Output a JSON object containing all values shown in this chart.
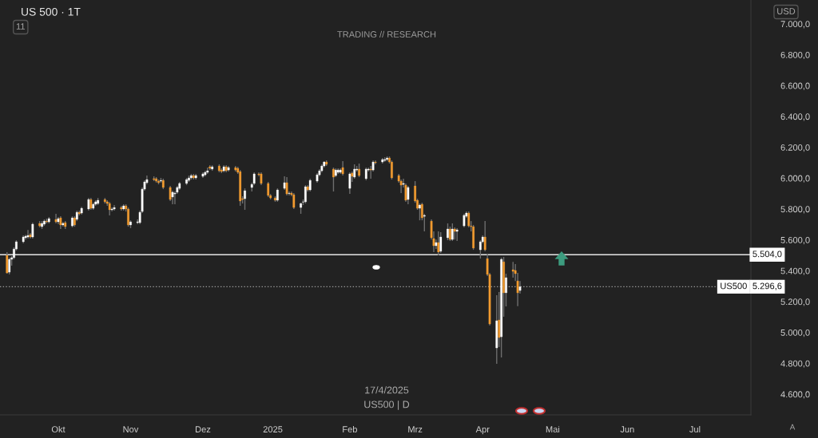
{
  "chart_data": {
    "type": "candlestick",
    "title": "US 500 · 1T",
    "subtitle": "TRADING // RESEARCH",
    "annotations": [
      "11",
      "USD",
      "17/4/2025",
      "US500 | D",
      "A",
      {
        "text": "US500",
        "y": 5296.6
      }
    ],
    "x": [
      "2024-09-09",
      "2024-09-10",
      "2024-09-11",
      "2024-09-12",
      "2024-09-13",
      "2024-09-16",
      "2024-09-17",
      "2024-09-18",
      "2024-09-19",
      "2024-09-20",
      "2024-09-23",
      "2024-09-24",
      "2024-09-25",
      "2024-09-26",
      "2024-09-27",
      "2024-09-30",
      "2024-10-01",
      "2024-10-02",
      "2024-10-03",
      "2024-10-04",
      "2024-10-07",
      "2024-10-08",
      "2024-10-09",
      "2024-10-10",
      "2024-10-11",
      "2024-10-14",
      "2024-10-15",
      "2024-10-16",
      "2024-10-17",
      "2024-10-18",
      "2024-10-21",
      "2024-10-22",
      "2024-10-23",
      "2024-10-24",
      "2024-10-25",
      "2024-10-28",
      "2024-10-29",
      "2024-10-30",
      "2024-10-31",
      "2024-11-01",
      "2024-11-04",
      "2024-11-05",
      "2024-11-06",
      "2024-11-07",
      "2024-11-08",
      "2024-11-11",
      "2024-11-12",
      "2024-11-13",
      "2024-11-14",
      "2024-11-15",
      "2024-11-18",
      "2024-11-19",
      "2024-11-20",
      "2024-11-21",
      "2024-11-22",
      "2024-11-25",
      "2024-11-26",
      "2024-11-27",
      "2024-11-28",
      "2024-11-29",
      "2024-12-02",
      "2024-12-03",
      "2024-12-04",
      "2024-12-05",
      "2024-12-06",
      "2024-12-09",
      "2024-12-10",
      "2024-12-11",
      "2024-12-12",
      "2024-12-13",
      "2024-12-16",
      "2024-12-17",
      "2024-12-18",
      "2024-12-19",
      "2024-12-20",
      "2024-12-23",
      "2024-12-24",
      "2024-12-26",
      "2024-12-27",
      "2024-12-30",
      "2024-12-31",
      "2025-01-02",
      "2025-01-03",
      "2025-01-06",
      "2025-01-07",
      "2025-01-08",
      "2025-01-09",
      "2025-01-10",
      "2025-01-13",
      "2025-01-14",
      "2025-01-15",
      "2025-01-16",
      "2025-01-17",
      "2025-01-20",
      "2025-01-21",
      "2025-01-22",
      "2025-01-23",
      "2025-01-24",
      "2025-01-27",
      "2025-01-28",
      "2025-01-29",
      "2025-01-30",
      "2025-01-31",
      "2025-02-03",
      "2025-02-04",
      "2025-02-05",
      "2025-02-06",
      "2025-02-07",
      "2025-02-10",
      "2025-02-11",
      "2025-02-12",
      "2025-02-13",
      "2025-02-14",
      "2025-02-17",
      "2025-02-18",
      "2025-02-19",
      "2025-02-20",
      "2025-02-21",
      "2025-02-24",
      "2025-02-25",
      "2025-02-26",
      "2025-02-27",
      "2025-02-28",
      "2025-03-03",
      "2025-03-04",
      "2025-03-05",
      "2025-03-06",
      "2025-03-07",
      "2025-03-10",
      "2025-03-11",
      "2025-03-12",
      "2025-03-13",
      "2025-03-14",
      "2025-03-17",
      "2025-03-18",
      "2025-03-19",
      "2025-03-20",
      "2025-03-21",
      "2025-03-24",
      "2025-03-25",
      "2025-03-26",
      "2025-03-27",
      "2025-03-28",
      "2025-03-31",
      "2025-04-01",
      "2025-04-02",
      "2025-04-03",
      "2025-04-04",
      "2025-04-07",
      "2025-04-08",
      "2025-04-09",
      "2025-04-10",
      "2025-04-11",
      "2025-04-14",
      "2025-04-15",
      "2025-04-16",
      "2025-04-17"
    ],
    "ohlc": [
      [
        5500,
        5521,
        5381,
        5386
      ],
      [
        5391,
        5485,
        5376,
        5474
      ],
      [
        5474,
        5495,
        5433,
        5485
      ],
      [
        5485,
        5552,
        5474,
        5541
      ],
      [
        5541,
        5598,
        5531,
        5588
      ],
      [
        5588,
        5629,
        5578,
        5619
      ],
      [
        5614,
        5634,
        5603,
        5624
      ],
      [
        5619,
        5665,
        5609,
        5629
      ],
      [
        5634,
        5645,
        5609,
        5619
      ],
      [
        5619,
        5712,
        5609,
        5702
      ],
      [
        5707,
        5722,
        5681,
        5691
      ],
      [
        5686,
        5722,
        5671,
        5707
      ],
      [
        5702,
        5733,
        5691,
        5722
      ],
      [
        5722,
        5738,
        5707,
        5717
      ],
      [
        5717,
        5748,
        5707,
        5738
      ],
      [
        5733,
        5769,
        5707,
        5717
      ],
      [
        5717,
        5748,
        5702,
        5738
      ],
      [
        5743,
        5753,
        5671,
        5697
      ],
      [
        5697,
        5717,
        5686,
        5707
      ],
      [
        5712,
        5722,
        5671,
        5686
      ],
      [
        5691,
        5753,
        5681,
        5743
      ],
      [
        5743,
        5753,
        5686,
        5697
      ],
      [
        5733,
        5790,
        5722,
        5779
      ],
      [
        5779,
        5790,
        5759,
        5769
      ],
      [
        5774,
        5815,
        5764,
        5805
      ],
      [
        5800,
        5872,
        5790,
        5862
      ],
      [
        5862,
        5872,
        5795,
        5805
      ],
      [
        5805,
        5841,
        5795,
        5831
      ],
      [
        5831,
        5857,
        5821,
        5847
      ],
      [
        5836,
        5872,
        5826,
        5857
      ],
      [
        5862,
        5872,
        5836,
        5847
      ],
      [
        5847,
        5857,
        5821,
        5836
      ],
      [
        5836,
        5847,
        5759,
        5795
      ],
      [
        5795,
        5810,
        5784,
        5800
      ],
      [
        5800,
        5826,
        5790,
        5810
      ],
      [
        5810,
        5821,
        5790,
        5800
      ],
      [
        5800,
        5831,
        5790,
        5821
      ],
      [
        5821,
        5831,
        5784,
        5800
      ],
      [
        5800,
        5810,
        5686,
        5697
      ],
      [
        5697,
        5727,
        5676,
        5717
      ],
      [
        5712,
        5733,
        5702,
        5717
      ],
      [
        5712,
        5790,
        5702,
        5779
      ],
      [
        5784,
        5940,
        5774,
        5929
      ],
      [
        5929,
        5986,
        5919,
        5976
      ],
      [
        5971,
        6017,
        5960,
        5991
      ],
      [
        5997,
        6012,
        5981,
        5991
      ],
      [
        5997,
        6007,
        5971,
        5981
      ],
      [
        5981,
        5991,
        5960,
        5971
      ],
      [
        5981,
        6002,
        5971,
        5986
      ],
      [
        5986,
        5997,
        5929,
        5940
      ],
      [
        5940,
        5950,
        5852,
        5862
      ],
      [
        5878,
        5919,
        5831,
        5909
      ],
      [
        5898,
        5914,
        5831,
        5903
      ],
      [
        5909,
        5950,
        5898,
        5940
      ],
      [
        5934,
        5976,
        5924,
        5966
      ],
      [
        5966,
        6002,
        5955,
        5991
      ],
      [
        5986,
        6017,
        5976,
        6002
      ],
      [
        6002,
        6028,
        5991,
        6017
      ],
      [
        6017,
        6028,
        5991,
        6002
      ],
      [
        6002,
        6028,
        5991,
        6017
      ],
      [
        6012,
        6038,
        6002,
        6028
      ],
      [
        6022,
        6048,
        6012,
        6038
      ],
      [
        6038,
        6069,
        6028,
        6048
      ],
      [
        6074,
        6084,
        6053,
        6064
      ],
      [
        6059,
        6084,
        6048,
        6074
      ],
      [
        6079,
        6090,
        6038,
        6048
      ],
      [
        6053,
        6064,
        6033,
        6043
      ],
      [
        6048,
        6084,
        6038,
        6074
      ],
      [
        6074,
        6084,
        6038,
        6048
      ],
      [
        6053,
        6079,
        6043,
        6069
      ],
      [
        6069,
        6079,
        6043,
        6053
      ],
      [
        6064,
        6074,
        6028,
        6038
      ],
      [
        6043,
        6053,
        5821,
        5852
      ],
      [
        5867,
        5883,
        5836,
        5862
      ],
      [
        5867,
        5934,
        5795,
        5919
      ],
      [
        5940,
        5971,
        5914,
        5960
      ],
      [
        5966,
        6038,
        5955,
        6028
      ],
      [
        6028,
        6038,
        6012,
        6022
      ],
      [
        6028,
        6038,
        5955,
        5966
      ],
      [
        5966,
        5976,
        5878,
        5888
      ],
      [
        5888,
        5898,
        5862,
        5872
      ],
      [
        5872,
        5883,
        5847,
        5857
      ],
      [
        5857,
        5934,
        5847,
        5924
      ],
      [
        5934,
        6012,
        5924,
        5971
      ],
      [
        5971,
        6007,
        5888,
        5898
      ],
      [
        5900,
        5914,
        5888,
        5903
      ],
      [
        5903,
        5914,
        5883,
        5893
      ],
      [
        5893,
        5903,
        5800,
        5810
      ],
      [
        5810,
        5841,
        5769,
        5836
      ],
      [
        5845,
        5862,
        5826,
        5847
      ],
      [
        5847,
        5955,
        5836,
        5945
      ],
      [
        5945,
        5955,
        5914,
        5924
      ],
      [
        5924,
        5997,
        5914,
        5986
      ],
      [
        5981,
        6033,
        5971,
        6022
      ],
      [
        6022,
        6059,
        6012,
        6048
      ],
      [
        6048,
        6090,
        6038,
        6079
      ],
      [
        6079,
        6110,
        6069,
        6105
      ],
      [
        6105,
        6115,
        6079,
        6090
      ],
      [
        6059,
        6069,
        5914,
        6007
      ],
      [
        6017,
        6064,
        6007,
        6053
      ],
      [
        6038,
        6064,
        6028,
        6053
      ],
      [
        6038,
        6064,
        6028,
        6053
      ],
      [
        6069,
        6110,
        6017,
        6028
      ],
      [
        5934,
        6038,
        5898,
        6028
      ],
      [
        6033,
        6043,
        5976,
        6012
      ],
      [
        6007,
        6090,
        5997,
        6059
      ],
      [
        6053,
        6079,
        6043,
        6059
      ],
      [
        6059,
        6095,
        6007,
        6017
      ],
      [
        5997,
        6069,
        5986,
        6059
      ],
      [
        6053,
        6069,
        6043,
        6059
      ],
      [
        6059,
        6079,
        5997,
        6053
      ],
      [
        6053,
        6115,
        6043,
        6105
      ],
      [
        6105,
        6115,
        6090,
        6100
      ],
      [
        6105,
        6131,
        6095,
        6121
      ],
      [
        6115,
        6136,
        6105,
        6121
      ],
      [
        6121,
        6141,
        6110,
        6131
      ],
      [
        6131,
        6141,
        6095,
        6105
      ],
      [
        6105,
        6115,
        5991,
        6002
      ],
      [
        6017,
        6028,
        5971,
        5981
      ],
      [
        5981,
        5991,
        5903,
        5955
      ],
      [
        5960,
        5997,
        5940,
        5966
      ],
      [
        5955,
        5966,
        5847,
        5857
      ],
      [
        5862,
        5950,
        5831,
        5940
      ],
      [
        5950,
        5981,
        5841,
        5852
      ],
      [
        5857,
        5867,
        5795,
        5805
      ],
      [
        5805,
        5836,
        5727,
        5826
      ],
      [
        5831,
        5841,
        5727,
        5743
      ],
      [
        5753,
        5769,
        5655,
        5759
      ],
      [
        5722,
        5733,
        5603,
        5614
      ],
      [
        5609,
        5655,
        5521,
        5562
      ],
      [
        5562,
        5603,
        5541,
        5583
      ],
      [
        5583,
        5655,
        5500,
        5521
      ],
      [
        5526,
        5650,
        5516,
        5619
      ],
      [
        5614,
        5707,
        5598,
        5671
      ],
      [
        5671,
        5686,
        5593,
        5603
      ],
      [
        5603,
        5707,
        5593,
        5671
      ],
      [
        5671,
        5681,
        5603,
        5655
      ],
      [
        5655,
        5676,
        5593,
        5665
      ],
      [
        5691,
        5769,
        5681,
        5759
      ],
      [
        5753,
        5784,
        5743,
        5774
      ],
      [
        5774,
        5784,
        5681,
        5691
      ],
      [
        5690,
        5722,
        5655,
        5686
      ],
      [
        5686,
        5697,
        5536,
        5547
      ],
      [
        5536,
        5598,
        5479,
        5588
      ],
      [
        5588,
        5629,
        5578,
        5619
      ],
      [
        5619,
        5722,
        5526,
        5536
      ],
      [
        5479,
        5510,
        5366,
        5376
      ],
      [
        5376,
        5386,
        5045,
        5055
      ],
      [
        4900,
        5242,
        4797,
        5076
      ],
      [
        5081,
        5262,
        4905,
        4967
      ],
      [
        4972,
        5485,
        4838,
        5474
      ],
      [
        5458,
        5490,
        5102,
        5257
      ],
      [
        5257,
        5381,
        5169,
        5355
      ],
      [
        5407,
        5458,
        5355,
        5396
      ],
      [
        5402,
        5443,
        5334,
        5381
      ],
      [
        5334,
        5386,
        5171,
        5257
      ],
      [
        5272,
        5334,
        5252,
        5296.6
      ]
    ],
    "colors": [
      "#f29b30",
      "#ffffff",
      "#ffffff",
      "#ffffff",
      "#ffffff",
      "#ffffff",
      "#ffffff",
      "#ffffff",
      "#f29b30",
      "#ffffff",
      "#f29b30",
      "#ffffff",
      "#ffffff",
      "#f29b30",
      "#ffffff",
      "#f29b30",
      "#ffffff",
      "#f29b30",
      "#ffffff",
      "#f29b30",
      "#ffffff",
      "#f29b30",
      "#ffffff",
      "#f29b30",
      "#ffffff",
      "#ffffff",
      "#f29b30",
      "#ffffff",
      "#ffffff",
      "#ffffff",
      "#f29b30",
      "#f29b30",
      "#f29b30",
      "#ffffff",
      "#ffffff",
      "#f29b30",
      "#ffffff",
      "#f29b30",
      "#f29b30",
      "#ffffff",
      "#ffffff",
      "#ffffff",
      "#ffffff",
      "#ffffff",
      "#ffffff",
      "#f29b30",
      "#f29b30",
      "#f29b30",
      "#ffffff",
      "#f29b30",
      "#f29b30",
      "#ffffff",
      "#ffffff",
      "#ffffff",
      "#ffffff",
      "#ffffff",
      "#ffffff",
      "#ffffff",
      "#f29b30",
      "#ffffff",
      "#ffffff",
      "#ffffff",
      "#ffffff",
      "#f29b30",
      "#ffffff",
      "#f29b30",
      "#f29b30",
      "#ffffff",
      "#f29b30",
      "#ffffff",
      "#f29b30",
      "#f29b30",
      "#f29b30",
      "#f29b30",
      "#ffffff",
      "#ffffff",
      "#ffffff",
      "#f29b30",
      "#f29b30",
      "#f29b30",
      "#f29b30",
      "#f29b30",
      "#ffffff",
      "#ffffff",
      "#f29b30",
      "#ffffff",
      "#f29b30",
      "#f29b30",
      "#ffffff",
      "#ffffff",
      "#ffffff",
      "#f29b30",
      "#ffffff",
      "#ffffff",
      "#ffffff",
      "#ffffff",
      "#ffffff",
      "#f29b30",
      "#f29b30",
      "#ffffff",
      "#ffffff",
      "#ffffff",
      "#f29b30",
      "#ffffff",
      "#f29b30",
      "#ffffff",
      "#ffffff",
      "#f29b30",
      "#ffffff",
      "#ffffff",
      "#f29b30",
      "#ffffff",
      "#f29b30",
      "#ffffff",
      "#ffffff",
      "#ffffff",
      "#f29b30",
      "#f29b30",
      "#f29b30",
      "#f29b30",
      "#ffffff",
      "#f29b30",
      "#ffffff",
      "#f29b30",
      "#f29b30",
      "#ffffff",
      "#f29b30",
      "#ffffff",
      "#f29b30",
      "#f29b30",
      "#ffffff",
      "#f29b30",
      "#ffffff",
      "#ffffff",
      "#f29b30",
      "#ffffff",
      "#f29b30",
      "#ffffff",
      "#ffffff",
      "#ffffff",
      "#f29b30",
      "#f29b30",
      "#f29b30",
      "#ffffff",
      "#ffffff",
      "#f29b30",
      "#f29b30",
      "#f29b30",
      "#ffffff",
      "#f29b30",
      "#ffffff",
      "#f29b30",
      "#ffffff",
      "#f29b30",
      "#f29b30",
      "#f29b30",
      "#ffffff"
    ],
    "xlim": [
      "2024-09-06",
      "2025-07-25"
    ],
    "xticks": [
      {
        "value": "2024-10-01",
        "label": "Okt"
      },
      {
        "value": "2024-11-01",
        "label": "Nov"
      },
      {
        "value": "2024-12-02",
        "label": "Dez"
      },
      {
        "value": "2025-01-01",
        "label": "2025"
      },
      {
        "value": "2025-02-03",
        "label": "Feb"
      },
      {
        "value": "2025-03-03",
        "label": "Mrz"
      },
      {
        "value": "2025-04-01",
        "label": "Apr"
      },
      {
        "value": "2025-05-01",
        "label": "Mai"
      },
      {
        "value": "2025-06-02",
        "label": "Jun"
      },
      {
        "value": "2025-07-01",
        "label": "Jul"
      }
    ],
    "ylim": [
      4466,
      7155
    ],
    "yticks": [
      {
        "value": 4600,
        "label": "4.600,0"
      },
      {
        "value": 4800,
        "label": "4.800,0"
      },
      {
        "value": 5000,
        "label": "5.000,0"
      },
      {
        "value": 5200,
        "label": "5.200,0"
      },
      {
        "value": 5400,
        "label": "5.400,0"
      },
      {
        "value": 5600,
        "label": "5.600,0"
      },
      {
        "value": 5800,
        "label": "5.800,0"
      },
      {
        "value": 6000,
        "label": "6.000,0"
      },
      {
        "value": 6200,
        "label": "6.200,0"
      },
      {
        "value": 6400,
        "label": "6.400,0"
      },
      {
        "value": 6600,
        "label": "6.600,0"
      },
      {
        "value": 6800,
        "label": "6.800,0"
      },
      {
        "value": 7000,
        "label": "7.000,0"
      }
    ],
    "ref_lines": [
      {
        "axis": "y",
        "value": 5504.0,
        "label": "5.504,0",
        "color": "#e6e6e6",
        "line_style": "solid"
      },
      {
        "axis": "y",
        "value": 5296.6,
        "label": "5.296,6",
        "color": "#9a9a9a",
        "line_style": "dotted"
      }
    ]
  }
}
